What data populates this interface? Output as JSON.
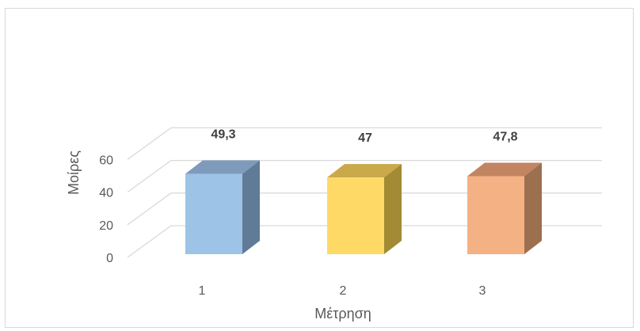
{
  "chart_data": {
    "type": "bar",
    "style": "3d-column",
    "categories": [
      "1",
      "2",
      "3"
    ],
    "values": [
      49.3,
      47,
      47.8
    ],
    "data_labels": [
      "49,3",
      "47",
      "47,8"
    ],
    "xlabel": "Μέτρηση",
    "ylabel": "Μοίρες",
    "ylim": [
      0,
      60
    ],
    "yticks": [
      "0",
      "20",
      "40",
      "60"
    ],
    "grid": true,
    "legend": "none",
    "colors": [
      {
        "front": "#9dc3e6",
        "side": "#607b96",
        "top": "#7f9bbb"
      },
      {
        "front": "#ffd966",
        "side": "#a38a34",
        "top": "#c9a94a"
      },
      {
        "front": "#f4b183",
        "side": "#9c6f4e",
        "top": "#c28461"
      }
    ],
    "gridline_color": "#d9d9d9"
  }
}
